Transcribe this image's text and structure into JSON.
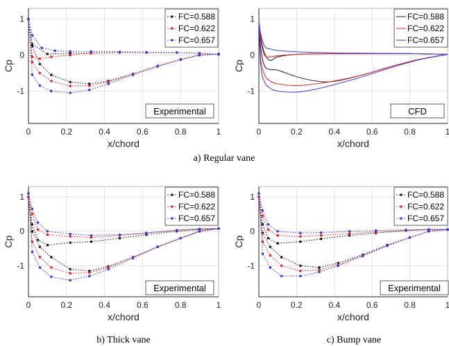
{
  "captions": {
    "regular": "a) Regular vane",
    "thick": "b) Thick vane",
    "bump": "c) Bump vane"
  },
  "colors": {
    "FC=0.588": "#1a1a1a",
    "FC=0.622": "#e8202a",
    "FC=0.657": "#3a3ae0"
  },
  "chart_data": [
    {
      "id": "panel-a-exp",
      "type": "line",
      "style": "dotted-markers",
      "xlabel": "x/chord",
      "ylabel": "Cp",
      "xlim": [
        0,
        1
      ],
      "ylim": [
        -1.9,
        1.3
      ],
      "xticks": [
        "0",
        "0.2",
        "0.4",
        "0.6",
        "0.8",
        "1"
      ],
      "yticks": [
        "1",
        "0",
        "-1"
      ],
      "grid": true,
      "legend_position": "top-right",
      "tag": "Experimental",
      "series": [
        {
          "name": "FC=0.588",
          "upper": {
            "x": [
              0,
              0.02,
              0.1,
              0.22,
              0.33,
              0.48,
              0.62,
              0.78,
              0.9,
              1.0
            ],
            "y": [
              1.0,
              0.3,
              0.03,
              0.05,
              0.06,
              0.07,
              0.07,
              0.07,
              0.05,
              0.02
            ]
          },
          "lower": {
            "x": [
              0,
              0.02,
              0.06,
              0.12,
              0.22,
              0.32,
              0.42,
              0.55,
              0.68,
              0.8,
              0.9,
              1.0
            ],
            "y": [
              1.0,
              0.25,
              -0.25,
              -0.55,
              -0.75,
              -0.8,
              -0.72,
              -0.52,
              -0.3,
              -0.12,
              0.0,
              0.03
            ]
          }
        },
        {
          "name": "FC=0.622",
          "upper": {
            "x": [
              0,
              0.02,
              0.06,
              0.12,
              0.22,
              0.33,
              0.48,
              0.62,
              0.78,
              0.9,
              1.0
            ],
            "y": [
              1.0,
              -0.05,
              -0.1,
              -0.05,
              0.0,
              0.05,
              0.07,
              0.07,
              0.07,
              0.05,
              0.02
            ]
          },
          "lower": {
            "x": [
              0,
              0.02,
              0.06,
              0.12,
              0.22,
              0.32,
              0.42,
              0.55,
              0.68,
              0.8,
              0.9,
              1.0
            ],
            "y": [
              1.0,
              -0.2,
              -0.5,
              -0.72,
              -0.86,
              -0.85,
              -0.75,
              -0.53,
              -0.3,
              -0.12,
              0.0,
              0.03
            ]
          }
        },
        {
          "name": "FC=0.657",
          "upper": {
            "x": [
              0,
              0.02,
              0.07,
              0.14,
              0.22,
              0.33,
              0.48,
              0.62,
              0.78,
              0.9,
              1.0
            ],
            "y": [
              1.0,
              0.55,
              0.2,
              0.12,
              0.1,
              0.1,
              0.09,
              0.08,
              0.07,
              0.05,
              0.02
            ]
          },
          "lower": {
            "x": [
              0,
              0.02,
              0.06,
              0.12,
              0.22,
              0.32,
              0.42,
              0.55,
              0.68,
              0.8,
              0.9,
              1.0
            ],
            "y": [
              1.0,
              -0.55,
              -0.85,
              -1.0,
              -1.05,
              -0.97,
              -0.8,
              -0.55,
              -0.32,
              -0.13,
              0.0,
              0.03
            ]
          }
        }
      ]
    },
    {
      "id": "panel-a-cfd",
      "type": "line",
      "style": "solid",
      "xlabel": "x/chord",
      "ylabel": "Cp",
      "xlim": [
        0,
        1
      ],
      "ylim": [
        -1.9,
        1.3
      ],
      "xticks": [
        "0",
        "0.2",
        "0.4",
        "0.6",
        "0.8",
        "1"
      ],
      "yticks": [
        "1",
        "0",
        "-1"
      ],
      "grid": true,
      "legend_position": "top-right",
      "tag": "CFD",
      "series": [
        {
          "name": "FC=0.588",
          "upper": {
            "x": [
              0,
              0.01,
              0.03,
              0.06,
              0.1,
              0.2,
              0.4,
              0.6,
              0.8,
              1.0
            ],
            "y": [
              0.95,
              0.5,
              0.05,
              -0.15,
              -0.05,
              0.02,
              0.04,
              0.04,
              0.04,
              0.02
            ]
          },
          "lower": {
            "x": [
              0,
              0.01,
              0.03,
              0.06,
              0.1,
              0.2,
              0.3,
              0.4,
              0.55,
              0.7,
              0.85,
              1.0
            ],
            "y": [
              0.95,
              0.2,
              -0.3,
              -0.4,
              -0.42,
              -0.6,
              -0.72,
              -0.73,
              -0.55,
              -0.32,
              -0.12,
              0.02
            ]
          }
        },
        {
          "name": "FC=0.622",
          "upper": {
            "x": [
              0,
              0.01,
              0.03,
              0.06,
              0.1,
              0.2,
              0.4,
              0.6,
              0.8,
              1.0
            ],
            "y": [
              0.95,
              0.4,
              0.0,
              -0.05,
              -0.02,
              0.02,
              0.04,
              0.04,
              0.04,
              0.02
            ]
          },
          "lower": {
            "x": [
              0,
              0.01,
              0.03,
              0.06,
              0.1,
              0.2,
              0.3,
              0.4,
              0.55,
              0.7,
              0.85,
              1.0
            ],
            "y": [
              0.95,
              -0.1,
              -0.55,
              -0.72,
              -0.8,
              -0.85,
              -0.8,
              -0.72,
              -0.55,
              -0.32,
              -0.12,
              0.02
            ]
          }
        },
        {
          "name": "FC=0.657",
          "upper": {
            "x": [
              0,
              0.01,
              0.03,
              0.06,
              0.1,
              0.2,
              0.4,
              0.6,
              0.8,
              1.0
            ],
            "y": [
              0.95,
              0.6,
              0.25,
              0.17,
              0.13,
              0.09,
              0.06,
              0.05,
              0.04,
              0.02
            ]
          },
          "lower": {
            "x": [
              0,
              0.01,
              0.03,
              0.06,
              0.1,
              0.2,
              0.3,
              0.4,
              0.55,
              0.7,
              0.85,
              1.0
            ],
            "y": [
              0.95,
              -0.3,
              -0.75,
              -0.92,
              -1.0,
              -1.03,
              -0.95,
              -0.82,
              -0.6,
              -0.35,
              -0.13,
              0.02
            ]
          }
        }
      ]
    },
    {
      "id": "panel-b-exp",
      "type": "line",
      "style": "dotted-markers",
      "xlabel": "x/chord",
      "ylabel": "Cp",
      "xlim": [
        0,
        1
      ],
      "ylim": [
        -1.9,
        1.3
      ],
      "xticks": [
        "0",
        "0.2",
        "0.4",
        "0.6",
        "0.8",
        "1"
      ],
      "yticks": [
        "1",
        "0",
        "-1"
      ],
      "grid": true,
      "legend_position": "top-right",
      "tag": "Experimental",
      "series": [
        {
          "name": "FC=0.588",
          "upper": {
            "x": [
              0,
              0.02,
              0.05,
              0.1,
              0.22,
              0.33,
              0.48,
              0.62,
              0.78,
              0.9,
              1.0
            ],
            "y": [
              1.0,
              0.2,
              -0.25,
              -0.4,
              -0.33,
              -0.3,
              -0.2,
              -0.1,
              0.0,
              0.05,
              0.08
            ]
          },
          "lower": {
            "x": [
              0,
              0.02,
              0.06,
              0.12,
              0.22,
              0.32,
              0.42,
              0.55,
              0.68,
              0.8,
              0.9,
              1.0
            ],
            "y": [
              1.0,
              0.0,
              -0.45,
              -0.75,
              -1.1,
              -1.15,
              -1.02,
              -0.75,
              -0.45,
              -0.2,
              0.0,
              0.08
            ]
          }
        },
        {
          "name": "FC=0.622",
          "upper": {
            "x": [
              0,
              0.02,
              0.05,
              0.1,
              0.22,
              0.33,
              0.48,
              0.62,
              0.78,
              0.9,
              1.0
            ],
            "y": [
              1.0,
              0.5,
              0.05,
              -0.1,
              -0.15,
              -0.18,
              -0.12,
              -0.05,
              0.03,
              0.07,
              0.08
            ]
          },
          "lower": {
            "x": [
              0,
              0.02,
              0.06,
              0.12,
              0.22,
              0.32,
              0.42,
              0.55,
              0.68,
              0.8,
              0.9,
              1.0
            ],
            "y": [
              1.0,
              -0.3,
              -0.75,
              -1.05,
              -1.22,
              -1.2,
              -1.05,
              -0.75,
              -0.45,
              -0.2,
              0.0,
              0.08
            ]
          }
        },
        {
          "name": "FC=0.657",
          "upper": {
            "x": [
              0,
              0.02,
              0.05,
              0.1,
              0.22,
              0.33,
              0.48,
              0.62,
              0.78,
              0.9,
              1.0
            ],
            "y": [
              1.1,
              0.65,
              0.25,
              0.0,
              -0.08,
              -0.12,
              -0.1,
              -0.05,
              0.03,
              0.07,
              0.08
            ]
          },
          "lower": {
            "x": [
              0,
              0.02,
              0.06,
              0.12,
              0.22,
              0.32,
              0.42,
              0.55,
              0.68,
              0.8,
              0.9,
              1.0
            ],
            "y": [
              1.1,
              -0.6,
              -1.05,
              -1.32,
              -1.42,
              -1.3,
              -1.1,
              -0.78,
              -0.45,
              -0.2,
              0.0,
              0.08
            ]
          }
        }
      ]
    },
    {
      "id": "panel-c-exp",
      "type": "line",
      "style": "dotted-markers",
      "xlabel": "x/chord",
      "ylabel": "Cp",
      "xlim": [
        0,
        1
      ],
      "ylim": [
        -1.9,
        1.3
      ],
      "xticks": [
        "0",
        "0.2",
        "0.4",
        "0.6",
        "0.8",
        "1"
      ],
      "yticks": [
        "1",
        "0",
        "-1"
      ],
      "grid": true,
      "legend_position": "top-right",
      "tag": "Experimental",
      "series": [
        {
          "name": "FC=0.588",
          "upper": {
            "x": [
              0,
              0.02,
              0.05,
              0.1,
              0.22,
              0.33,
              0.48,
              0.62,
              0.78,
              0.9,
              1.0
            ],
            "y": [
              1.0,
              0.2,
              -0.2,
              -0.35,
              -0.3,
              -0.22,
              -0.12,
              -0.05,
              0.02,
              0.05,
              0.05
            ]
          },
          "lower": {
            "x": [
              0,
              0.02,
              0.06,
              0.12,
              0.22,
              0.32,
              0.42,
              0.55,
              0.68,
              0.8,
              0.9,
              1.0
            ],
            "y": [
              1.0,
              -0.05,
              -0.45,
              -0.75,
              -1.0,
              -1.05,
              -0.92,
              -0.68,
              -0.4,
              -0.18,
              0.0,
              0.05
            ]
          }
        },
        {
          "name": "FC=0.622",
          "upper": {
            "x": [
              0,
              0.02,
              0.05,
              0.1,
              0.22,
              0.33,
              0.48,
              0.62,
              0.78,
              0.9,
              1.0
            ],
            "y": [
              1.0,
              0.45,
              0.05,
              -0.12,
              -0.15,
              -0.12,
              -0.07,
              -0.02,
              0.03,
              0.05,
              0.05
            ]
          },
          "lower": {
            "x": [
              0,
              0.02,
              0.06,
              0.12,
              0.22,
              0.32,
              0.42,
              0.55,
              0.68,
              0.8,
              0.9,
              1.0
            ],
            "y": [
              1.0,
              -0.3,
              -0.7,
              -1.0,
              -1.15,
              -1.12,
              -0.97,
              -0.7,
              -0.42,
              -0.18,
              0.0,
              0.05
            ]
          }
        },
        {
          "name": "FC=0.657",
          "upper": {
            "x": [
              0,
              0.02,
              0.05,
              0.1,
              0.22,
              0.33,
              0.48,
              0.62,
              0.78,
              0.9,
              1.0
            ],
            "y": [
              1.1,
              0.6,
              0.2,
              0.0,
              -0.05,
              -0.04,
              0.0,
              0.02,
              0.04,
              0.05,
              0.05
            ]
          },
          "lower": {
            "x": [
              0,
              0.02,
              0.06,
              0.12,
              0.22,
              0.32,
              0.42,
              0.55,
              0.68,
              0.8,
              0.9,
              1.0
            ],
            "y": [
              1.1,
              -0.65,
              -1.05,
              -1.3,
              -1.3,
              -1.18,
              -1.0,
              -0.72,
              -0.42,
              -0.18,
              0.0,
              0.05
            ]
          }
        }
      ]
    }
  ]
}
